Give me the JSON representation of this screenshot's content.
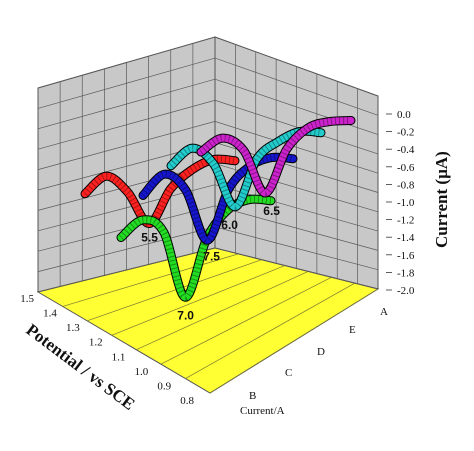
{
  "chart_data": {
    "type": "line",
    "subtype": "3d-ribbon",
    "xlabel": "Potential / vs SCE",
    "ylabel": "Current (µA)",
    "depth_label": "Current/A",
    "x_ticks": [
      "1.5",
      "1.4",
      "1.3",
      "1.2",
      "1.1",
      "1.0",
      "0.9",
      "0.8"
    ],
    "xlim": [
      0.8,
      1.5
    ],
    "y_ticks": [
      "0.0",
      "-0.2",
      "-0.4",
      "-0.6",
      "-0.8",
      "-1.0",
      "-1.2",
      "-1.4",
      "-1.6",
      "-1.8",
      "-2.0"
    ],
    "ylim": [
      -2.0,
      0.0
    ],
    "depth_ticks": [
      "B",
      "C",
      "D",
      "E",
      "A"
    ],
    "grid": true,
    "colors": {
      "floor": "#ffff33",
      "walls": "#c8c8c8",
      "grid": "#555555"
    },
    "series": [
      {
        "label": "5.5",
        "color": "#ff2020",
        "x": [
          1.5,
          1.4,
          1.3,
          1.2,
          1.1,
          1.0,
          0.9,
          0.8
        ],
        "y": [
          -0.25,
          -0.05,
          -0.3,
          -0.75,
          -0.32,
          -0.1,
          0.0,
          -0.05
        ]
      },
      {
        "label": "7.0",
        "color": "#22dd22",
        "x": [
          1.5,
          1.4,
          1.3,
          1.2,
          1.1,
          1.0,
          0.9,
          0.8
        ],
        "y": [
          -0.3,
          -0.1,
          -0.3,
          -1.2,
          -0.45,
          -0.1,
          0.0,
          -0.05
        ]
      },
      {
        "label": "7.5",
        "color": "#1515cc",
        "x": [
          1.5,
          1.4,
          1.3,
          1.2,
          1.1,
          1.0,
          0.9,
          0.8
        ],
        "y": [
          -0.3,
          -0.05,
          -0.3,
          -1.0,
          -0.35,
          -0.08,
          0.0,
          -0.05
        ]
      },
      {
        "label": "6.0",
        "color": "#22cccc",
        "x": [
          1.5,
          1.4,
          1.3,
          1.2,
          1.1,
          1.0,
          0.9,
          0.8
        ],
        "y": [
          -0.25,
          -0.05,
          -0.3,
          -0.9,
          -0.3,
          -0.1,
          0.0,
          -0.05
        ]
      },
      {
        "label": "6.5",
        "color": "#cc22cc",
        "x": [
          1.5,
          1.4,
          1.3,
          1.2,
          1.1,
          1.0,
          0.9,
          0.8
        ],
        "y": [
          -0.2,
          -0.05,
          -0.25,
          -0.85,
          -0.3,
          -0.05,
          0.0,
          -0.02
        ]
      }
    ]
  }
}
